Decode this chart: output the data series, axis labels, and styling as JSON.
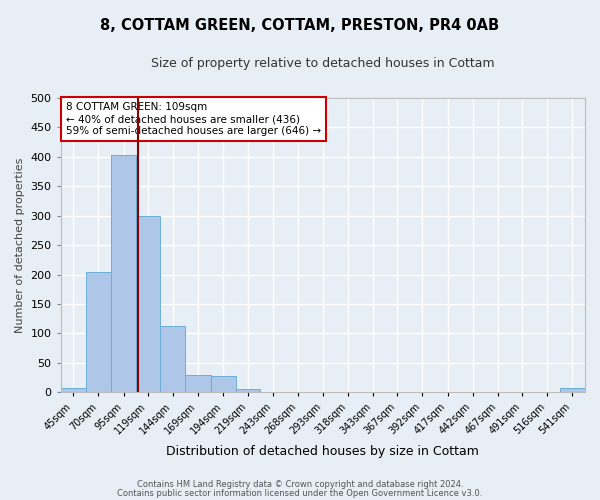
{
  "title": "8, COTTAM GREEN, COTTAM, PRESTON, PR4 0AB",
  "subtitle": "Size of property relative to detached houses in Cottam",
  "xlabel": "Distribution of detached houses by size in Cottam",
  "ylabel": "Number of detached properties",
  "bin_labels": [
    "45sqm",
    "70sqm",
    "95sqm",
    "119sqm",
    "144sqm",
    "169sqm",
    "194sqm",
    "219sqm",
    "243sqm",
    "268sqm",
    "293sqm",
    "318sqm",
    "343sqm",
    "367sqm",
    "392sqm",
    "417sqm",
    "442sqm",
    "467sqm",
    "491sqm",
    "516sqm",
    "541sqm"
  ],
  "label_vals": [
    45,
    70,
    95,
    119,
    144,
    169,
    194,
    219,
    243,
    268,
    293,
    318,
    343,
    367,
    392,
    417,
    442,
    467,
    491,
    516,
    541
  ],
  "bar_values": [
    8,
    205,
    403,
    300,
    112,
    30,
    28,
    6,
    1,
    0,
    0,
    0,
    0,
    0,
    0,
    0,
    0,
    0,
    0,
    0,
    7
  ],
  "bar_color": "#aec6e8",
  "bar_edge_color": "#6baed6",
  "background_color": "#e8eef5",
  "grid_color": "#ffffff",
  "property_line_x": 109,
  "property_line_color": "#8b0000",
  "annotation_text": "8 COTTAM GREEN: 109sqm\n← 40% of detached houses are smaller (436)\n59% of semi-detached houses are larger (646) →",
  "annotation_box_color": "#ffffff",
  "annotation_box_edge_color": "#cc0000",
  "ylim": [
    0,
    500
  ],
  "yticks": [
    0,
    50,
    100,
    150,
    200,
    250,
    300,
    350,
    400,
    450,
    500
  ],
  "footer_line1": "Contains HM Land Registry data © Crown copyright and database right 2024.",
  "footer_line2": "Contains public sector information licensed under the Open Government Licence v3.0."
}
